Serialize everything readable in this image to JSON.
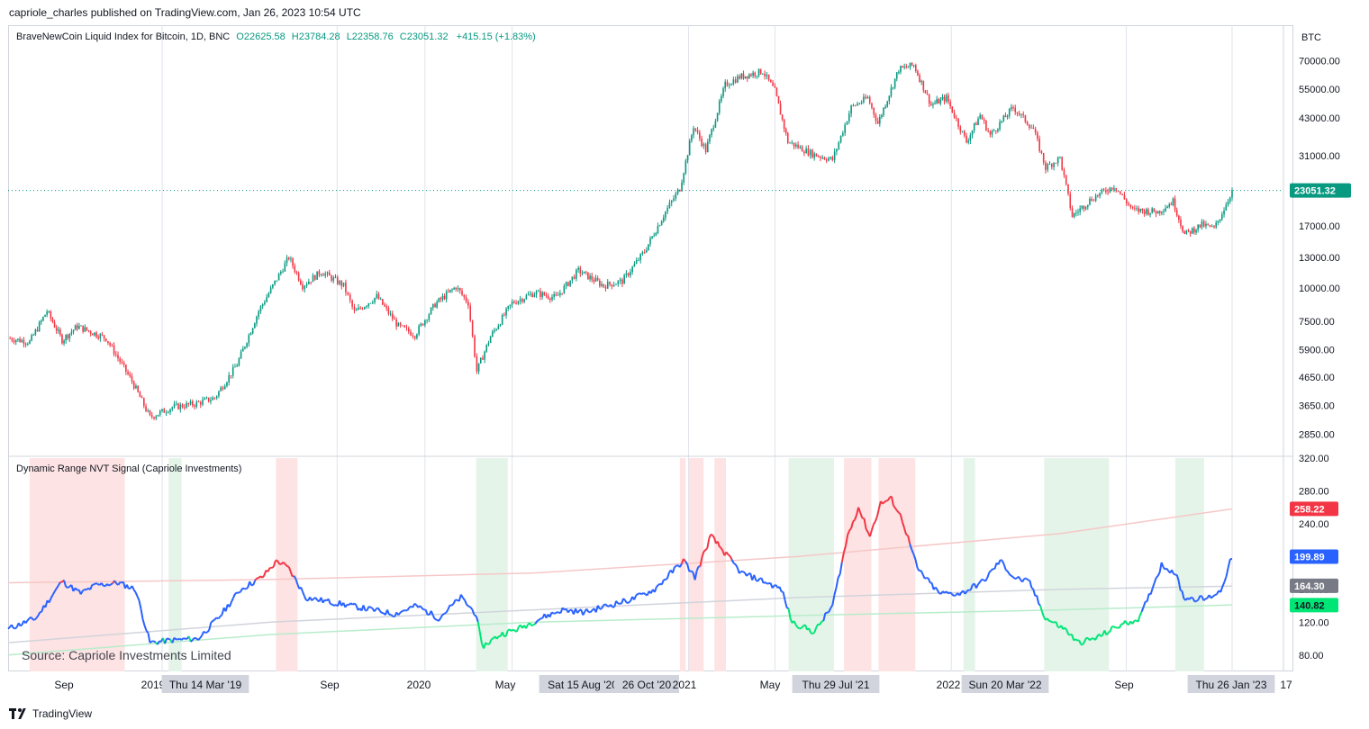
{
  "header": {
    "published": "capriole_charles published on TradingView.com, Jan 26, 2023 10:54 UTC"
  },
  "legend": {
    "symbol": "BraveNewCoin Liquid Index for Bitcoin, 1D, BNC",
    "open": "O22625.58",
    "high": "H23784.28",
    "low": "L22358.76",
    "close": "C23051.32",
    "change": "+415.15 (+1.83%)"
  },
  "indicator": {
    "title": "Dynamic Range NVT Signal (Capriole Investments)"
  },
  "source_note": "Source: Capriole Investments Limited",
  "footer": {
    "brand": "TradingView"
  },
  "colors": {
    "up": "#089981",
    "down": "#f23645",
    "nvt_blue": "#2962ff",
    "nvt_red": "#f23645",
    "nvt_green": "#00e676",
    "red_zone": "#fde3e3",
    "green_zone": "#e4f4e9"
  },
  "chart_data": [
    {
      "type": "candlestick",
      "title": "BraveNewCoin Liquid Index for Bitcoin, 1D, BNC",
      "yscale": "log",
      "ylabel": "BTC",
      "ylim": [
        2400,
        95000
      ],
      "y_ticks": [
        70000,
        55000,
        43000,
        31000,
        17000,
        13000,
        10000,
        7500,
        5900,
        4650,
        3650,
        2850
      ],
      "y_tick_labels": [
        "70000.00",
        "55000.00",
        "43000.00",
        "31000.00",
        "17000.00",
        "13000.00",
        "10000.00",
        "7500.00",
        "5900.00",
        "4650.00",
        "3650.00",
        "2850.00"
      ],
      "last_price": 23051.32,
      "last_price_label": "23051.32",
      "series": [
        {
          "name": "BLX",
          "x": [
            "2018-06-01",
            "2018-07-01",
            "2018-07-25",
            "2018-08-15",
            "2018-09-05",
            "2018-10-15",
            "2018-11-20",
            "2018-12-15",
            "2019-01-15",
            "2019-02-15",
            "2019-03-15",
            "2019-04-15",
            "2019-05-15",
            "2019-06-26",
            "2019-07-15",
            "2019-08-10",
            "2019-09-10",
            "2019-09-25",
            "2019-10-26",
            "2019-11-25",
            "2019-12-18",
            "2020-01-15",
            "2020-02-13",
            "2020-03-01",
            "2020-03-13",
            "2020-04-01",
            "2020-05-01",
            "2020-06-01",
            "2020-07-01",
            "2020-08-01",
            "2020-09-05",
            "2020-10-01",
            "2020-11-01",
            "2020-11-30",
            "2020-12-20",
            "2021-01-08",
            "2021-01-25",
            "2021-02-21",
            "2021-03-13",
            "2021-04-14",
            "2021-05-01",
            "2021-05-19",
            "2021-06-22",
            "2021-07-20",
            "2021-08-15",
            "2021-09-07",
            "2021-09-21",
            "2021-10-20",
            "2021-11-10",
            "2021-12-04",
            "2021-12-25",
            "2022-01-22",
            "2022-02-10",
            "2022-02-24",
            "2022-03-28",
            "2022-04-25",
            "2022-05-12",
            "2022-06-01",
            "2022-06-18",
            "2022-07-15",
            "2022-08-15",
            "2022-09-10",
            "2022-10-15",
            "2022-11-05",
            "2022-11-21",
            "2022-12-15",
            "2023-01-01",
            "2023-01-12",
            "2023-01-26"
          ],
          "values": [
            6500,
            6300,
            8200,
            6400,
            7200,
            6500,
            4500,
            3300,
            3600,
            3700,
            3900,
            5200,
            8200,
            13000,
            10200,
            11500,
            10200,
            8100,
            9300,
            7200,
            6700,
            8700,
            10100,
            8800,
            4900,
            6600,
            8800,
            9600,
            9200,
            11600,
            10200,
            10600,
            13700,
            19200,
            23500,
            40000,
            32500,
            57000,
            61000,
            64000,
            54000,
            35000,
            31500,
            30000,
            47000,
            51000,
            41000,
            65000,
            67500,
            48000,
            51000,
            35000,
            44000,
            37000,
            47000,
            39000,
            28000,
            30500,
            18500,
            21500,
            24000,
            19500,
            19200,
            21000,
            15800,
            17200,
            16600,
            19000,
            23051
          ]
        }
      ]
    },
    {
      "type": "line",
      "title": "Dynamic Range NVT Signal (Capriole Investments)",
      "ylim": [
        60,
        320
      ],
      "y_ticks": [
        320,
        280,
        240,
        200,
        160,
        120,
        80
      ],
      "y_tick_labels": [
        "320.00",
        "280.00",
        "240.00",
        "200.00",
        "160.00",
        "120.00",
        "80.00"
      ],
      "value_labels": [
        {
          "value": 258.22,
          "label": "258.22",
          "color": "#f23645"
        },
        {
          "value": 199.89,
          "label": "199.89",
          "color": "#2962ff"
        },
        {
          "value": 164.3,
          "label": "164.30",
          "color": "#787b86"
        },
        {
          "value": 140.82,
          "label": "140.82",
          "color": "#00e676"
        }
      ],
      "x_labels": [
        "Sep",
        "2019",
        "Thu 14 Mar '19",
        "Sep",
        "2020",
        "May",
        "Sat 15 Aug '20",
        "26 Oct '20",
        "2021",
        "May",
        "Thu 29 Jul '21",
        "2022",
        "Sun 20 Mar '22",
        "Sep",
        "Thu 26 Jan '23",
        "17"
      ],
      "series": [
        {
          "name": "NVT Signal",
          "x": [
            "2018-06-01",
            "2018-07-10",
            "2018-08-15",
            "2018-09-10",
            "2018-10-01",
            "2018-11-01",
            "2018-11-25",
            "2018-12-15",
            "2019-01-15",
            "2019-02-20",
            "2019-03-20",
            "2019-04-20",
            "2019-05-20",
            "2019-06-10",
            "2019-06-26",
            "2019-07-20",
            "2019-08-20",
            "2019-09-20",
            "2019-10-20",
            "2019-11-20",
            "2019-12-20",
            "2020-01-20",
            "2020-02-20",
            "2020-03-12",
            "2020-03-20",
            "2020-04-15",
            "2020-05-10",
            "2020-06-10",
            "2020-07-10",
            "2020-08-10",
            "2020-09-10",
            "2020-10-15",
            "2020-11-15",
            "2020-12-10",
            "2020-12-25",
            "2021-01-10",
            "2021-02-01",
            "2021-02-20",
            "2021-03-15",
            "2021-04-15",
            "2021-05-10",
            "2021-05-25",
            "2021-06-25",
            "2021-07-20",
            "2021-08-10",
            "2021-08-25",
            "2021-09-10",
            "2021-09-25",
            "2021-10-10",
            "2021-10-25",
            "2021-11-15",
            "2021-12-15",
            "2022-01-15",
            "2022-02-15",
            "2022-03-10",
            "2022-03-28",
            "2022-04-20",
            "2022-05-12",
            "2022-06-10",
            "2022-06-25",
            "2022-07-20",
            "2022-08-20",
            "2022-09-20",
            "2022-10-20",
            "2022-11-08",
            "2022-11-20",
            "2022-12-20",
            "2023-01-10",
            "2023-01-26"
          ],
          "values": [
            112,
            125,
            170,
            155,
            165,
            168,
            160,
            95,
            98,
            100,
            125,
            160,
            175,
            195,
            185,
            150,
            145,
            140,
            135,
            130,
            140,
            125,
            150,
            130,
            90,
            105,
            112,
            125,
            135,
            132,
            140,
            148,
            160,
            182,
            195,
            175,
            225,
            205,
            180,
            170,
            160,
            120,
            108,
            140,
            225,
            260,
            225,
            265,
            270,
            245,
            185,
            155,
            155,
            170,
            195,
            175,
            168,
            125,
            110,
            95,
            100,
            115,
            125,
            190,
            180,
            150,
            148,
            158,
            200
          ]
        },
        {
          "name": "Upper band",
          "x": [
            "2018-06-01",
            "2019-06-01",
            "2020-06-01",
            "2021-06-01",
            "2022-06-01",
            "2023-01-26"
          ],
          "values": [
            168,
            172,
            180,
            200,
            228,
            258
          ]
        },
        {
          "name": "Mid band",
          "x": [
            "2018-06-01",
            "2019-06-01",
            "2020-06-01",
            "2021-06-01",
            "2022-06-01",
            "2023-01-26"
          ],
          "values": [
            95,
            120,
            135,
            150,
            160,
            164
          ]
        },
        {
          "name": "Lower band",
          "x": [
            "2018-06-01",
            "2019-06-01",
            "2020-06-01",
            "2021-06-01",
            "2022-06-01",
            "2023-01-26"
          ],
          "values": [
            80,
            105,
            120,
            128,
            135,
            141
          ]
        }
      ]
    }
  ]
}
